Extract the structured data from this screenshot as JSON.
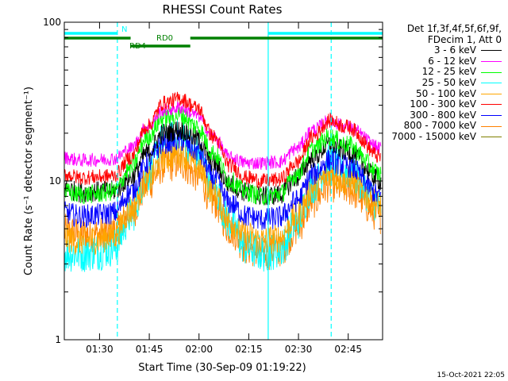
{
  "chart_data": {
    "type": "line",
    "title": "RHESSI Count Rates",
    "xlabel": "Start Time (30-Sep-09 01:19:22)",
    "ylabel": "Count Rate (s⁻¹ detector segment⁻¹)",
    "ylog": true,
    "ylim": [
      1,
      100
    ],
    "xlim": [
      "01:19:22",
      "02:55:30"
    ],
    "yticks": [
      "1",
      "10",
      "100"
    ],
    "xticks": [
      "01:30",
      "01:45",
      "02:00",
      "02:15",
      "02:30",
      "02:45"
    ],
    "legend_header": [
      "Det 1f,3f,4f,5f,6f,9f,",
      "FDecim 1, Att 0"
    ],
    "series": [
      {
        "name": "3 - 6 keV",
        "color": "#000000",
        "values": [
          9,
          8.5,
          8.6,
          8.7,
          10.5,
          15,
          20,
          21,
          18.5,
          13,
          9.5,
          8.5,
          8,
          8.2,
          10.5,
          14,
          17,
          15.5,
          10
        ]
      },
      {
        "name": "6 - 12 keV",
        "color": "#ff00ff",
        "values": [
          14,
          13.5,
          13.6,
          13.8,
          16,
          22,
          28,
          29,
          26,
          19,
          14,
          13,
          13,
          13.2,
          16,
          21,
          24,
          22,
          16
        ]
      },
      {
        "name": "12 - 25 keV",
        "color": "#00ff00",
        "values": [
          8.5,
          8.2,
          8.3,
          8.6,
          12,
          19,
          25,
          26,
          22,
          15,
          10,
          8.5,
          8,
          8.3,
          11,
          16,
          19,
          17,
          11
        ]
      },
      {
        "name": "25 - 50 keV",
        "color": "#00ffff",
        "values": [
          3.5,
          3.5,
          3.6,
          3.8,
          6,
          11,
          18,
          19,
          15,
          9,
          5.5,
          3.8,
          3.5,
          3.7,
          5.5,
          9.5,
          13,
          11.5,
          7
        ]
      },
      {
        "name": "50 - 100 keV",
        "color": "#ffa500",
        "values": [
          4.4,
          4.2,
          4.3,
          4.6,
          6.5,
          10,
          14,
          15,
          12.5,
          8.5,
          5.5,
          4.5,
          4.2,
          4.4,
          6,
          9,
          11,
          10,
          7
        ]
      },
      {
        "name": "100 - 300 keV",
        "color": "#ff0000",
        "values": [
          11,
          10.5,
          10.6,
          10.8,
          14,
          22,
          31,
          33,
          29,
          19,
          12.5,
          10.5,
          10,
          10.2,
          13,
          19,
          24,
          22,
          14
        ]
      },
      {
        "name": "300 - 800 keV",
        "color": "#0000ff",
        "values": [
          6.3,
          6,
          6.1,
          6.3,
          8.5,
          13,
          17.5,
          18,
          15.5,
          10.5,
          7.2,
          6,
          5.7,
          5.9,
          7.5,
          11,
          13.5,
          12.5,
          8
        ]
      },
      {
        "name": "800 - 7000 keV",
        "color": "#ff8000",
        "values": [
          4.8,
          4.6,
          4.6,
          4.8,
          6.2,
          9.5,
          12.5,
          13,
          11,
          7.5,
          5,
          3.8,
          3.5,
          3.7,
          5,
          7.5,
          9.5,
          9,
          6
        ]
      },
      {
        "name": "7000 - 15000 keV",
        "color": "#808000",
        "values": []
      }
    ],
    "x_sample_minutes": [
      0,
      5,
      10,
      15,
      20,
      25,
      30,
      35,
      40,
      45,
      50,
      55,
      60,
      65,
      70,
      75,
      80,
      85,
      96
    ],
    "vertical_markers_dashed_min": [
      16,
      80.5
    ],
    "vertical_markers_solid_min": [
      61.5
    ],
    "attenuator_bars": [
      {
        "label": "N",
        "color": "#00ffff",
        "segments": [
          [
            0,
            16
          ],
          [
            61.5,
            96
          ]
        ]
      },
      {
        "label": "RD0",
        "color": "#008000",
        "segments": [
          [
            0,
            20
          ],
          [
            38,
            96
          ]
        ]
      },
      {
        "label": "RD4",
        "color": "#008000",
        "segments": [
          [
            20,
            38
          ]
        ]
      }
    ],
    "grid": false
  },
  "footer": {
    "timestamp": "15-Oct-2021 22:05"
  }
}
